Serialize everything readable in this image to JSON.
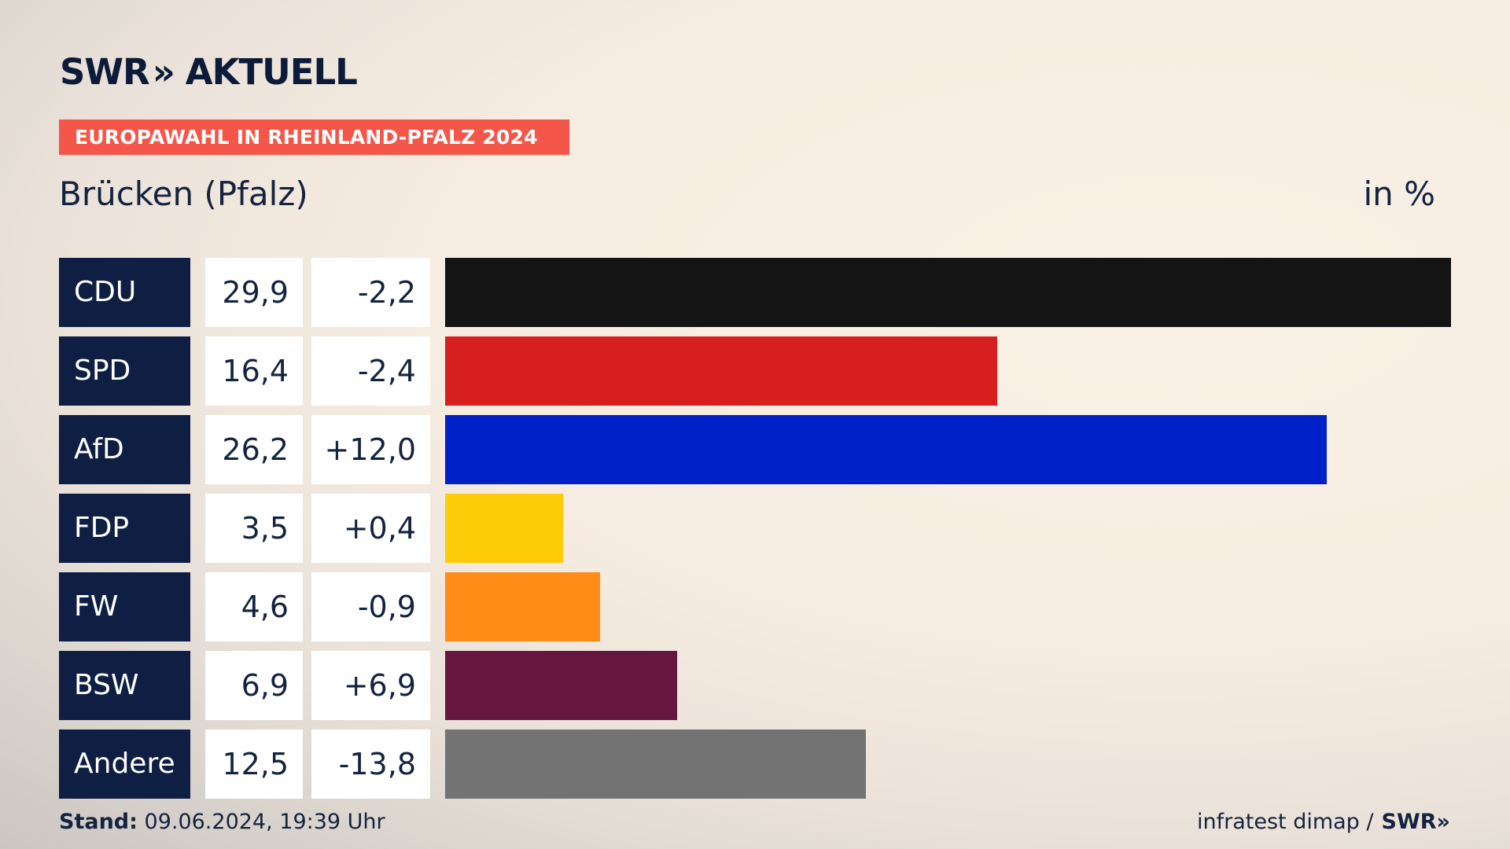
{
  "header": {
    "logo_text": "SWR",
    "logo_chevron": "»",
    "logo_suffix": "AKTUELL"
  },
  "banner": {
    "text": "EUROPAWAHL IN RHEINLAND-PFALZ 2024",
    "color": "#f4574a"
  },
  "location": "Brücken (Pfalz)",
  "unit": "in %",
  "chart_data": {
    "type": "bar",
    "orientation": "horizontal",
    "title": "Brücken (Pfalz)",
    "unit_label": "in %",
    "categories": [
      "CDU",
      "SPD",
      "AfD",
      "FDP",
      "FW",
      "BSW",
      "Andere"
    ],
    "values": [
      29.9,
      16.4,
      26.2,
      3.5,
      4.6,
      6.9,
      12.5
    ],
    "value_labels": [
      "29,9",
      "16,4",
      "26,2",
      "3,5",
      "4,6",
      "6,9",
      "12,5"
    ],
    "changes": [
      -2.2,
      -2.4,
      12.0,
      0.4,
      -0.9,
      6.9,
      -13.8
    ],
    "change_labels": [
      "-2,2",
      "-2,4",
      "+12,0",
      "+0,4",
      "-0,9",
      "+6,9",
      "-13,8"
    ],
    "colors": [
      "#141414",
      "#d71f1f",
      "#0021c8",
      "#ffcc0a",
      "#ff8c17",
      "#65173f",
      "#737373"
    ],
    "xlim": [
      0,
      29.9
    ],
    "grid": false,
    "legend": "none"
  },
  "footer": {
    "stand_label": "Stand:",
    "stand_value": "09.06.2024, 19:39 Uhr",
    "source": "infratest dimap /",
    "source_brand": "SWR",
    "source_chevron": "»"
  }
}
